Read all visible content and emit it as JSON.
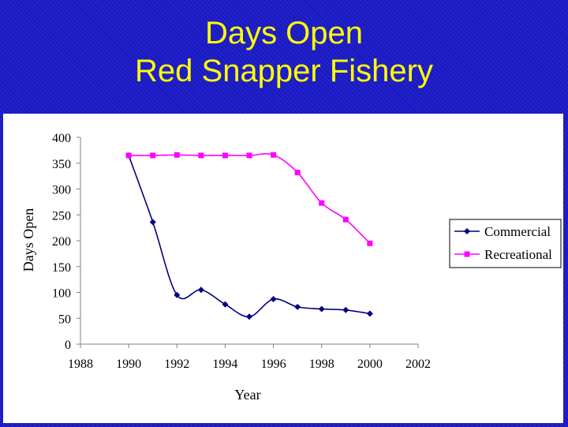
{
  "slide": {
    "title_line1": "Days Open",
    "title_line2": "Red Snapper Fishery",
    "title_color": "#ffff00",
    "background_color": "#1a1ac4"
  },
  "chart_data": {
    "type": "line",
    "title": "",
    "xlabel": "Year",
    "ylabel": "Days Open",
    "xlim": [
      1988,
      2002
    ],
    "ylim": [
      0,
      400
    ],
    "x_ticks": [
      1988,
      1990,
      1992,
      1994,
      1996,
      1998,
      2000,
      2002
    ],
    "y_ticks": [
      0,
      50,
      100,
      150,
      200,
      250,
      300,
      350,
      400
    ],
    "grid": false,
    "legend_position": "right",
    "smooth": true,
    "series": [
      {
        "name": "Commercial",
        "color": "#000080",
        "marker": "diamond",
        "x": [
          1990,
          1991,
          1992,
          1993,
          1994,
          1995,
          1996,
          1997,
          1998,
          1999,
          2000
        ],
        "y": [
          365,
          236,
          95,
          105,
          77,
          53,
          87,
          72,
          68,
          66,
          59
        ]
      },
      {
        "name": "Recreational",
        "color": "#ff00ff",
        "marker": "square",
        "x": [
          1990,
          1991,
          1992,
          1993,
          1994,
          1995,
          1996,
          1997,
          1998,
          1999,
          2000
        ],
        "y": [
          365,
          365,
          366,
          365,
          365,
          365,
          366,
          332,
          273,
          241,
          195
        ]
      }
    ]
  }
}
